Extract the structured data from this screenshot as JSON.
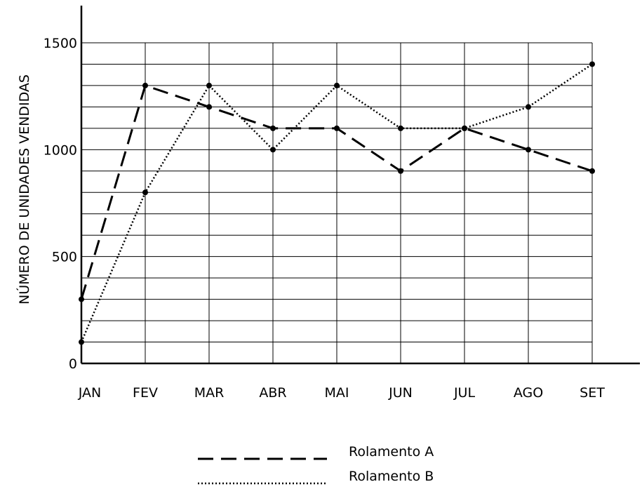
{
  "chart_data": {
    "type": "line",
    "title": "",
    "xlabel": "",
    "ylabel": "NÚMERO DE UNIDADES VENDIDAS",
    "categories": [
      "JAN",
      "FEV",
      "MAR",
      "ABR",
      "MAI",
      "JUN",
      "JUL",
      "AGO",
      "SET"
    ],
    "ylim": [
      0,
      1500
    ],
    "yticks": [
      "0",
      "500",
      "1000",
      "1500"
    ],
    "grid": true,
    "legend_position": "bottom-center",
    "series": [
      {
        "name": "Rolamento A",
        "style": "dashed",
        "color": "#000000",
        "values": [
          300,
          1300,
          1200,
          1100,
          1100,
          900,
          1100,
          1000,
          900
        ]
      },
      {
        "name": "Rolamento B",
        "style": "dotted",
        "color": "#000000",
        "values": [
          100,
          800,
          1300,
          1000,
          1300,
          1100,
          1100,
          1200,
          1400
        ]
      }
    ]
  }
}
